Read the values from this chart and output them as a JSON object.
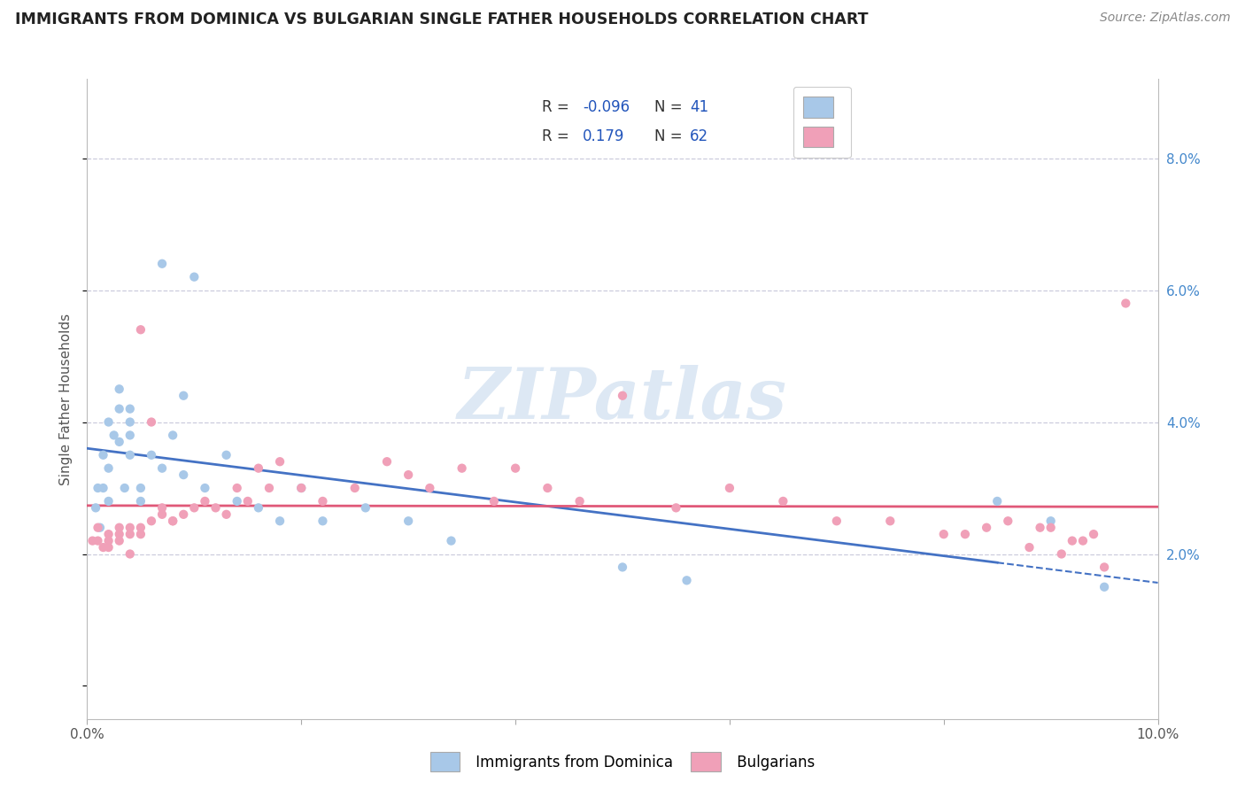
{
  "title": "IMMIGRANTS FROM DOMINICA VS BULGARIAN SINGLE FATHER HOUSEHOLDS CORRELATION CHART",
  "source_text": "Source: ZipAtlas.com",
  "ylabel": "Single Father Households",
  "xlim": [
    0.0,
    0.1
  ],
  "ylim": [
    -0.005,
    0.092
  ],
  "xtick_positions": [
    0.0,
    0.02,
    0.04,
    0.06,
    0.08,
    0.1
  ],
  "xticklabels": [
    "0.0%",
    "",
    "",
    "",
    "",
    "10.0%"
  ],
  "ytick_positions": [
    0.02,
    0.04,
    0.06,
    0.08
  ],
  "ytick_labels": [
    "2.0%",
    "4.0%",
    "6.0%",
    "8.0%"
  ],
  "blue_color": "#a8c8e8",
  "pink_color": "#f0a0b8",
  "blue_line_color": "#4472c4",
  "pink_line_color": "#e05878",
  "legend_text_color": "#2255bb",
  "grid_color": "#ccccdd",
  "watermark": "ZIPatlas",
  "watermark_color": "#dde8f4",
  "blue_label": "Immigrants from Dominica",
  "pink_label": "Bulgarians",
  "blue_R": -0.096,
  "blue_N": 41,
  "pink_R": 0.179,
  "pink_N": 62,
  "blue_scatter_x": [
    0.0008,
    0.001,
    0.0012,
    0.0015,
    0.0015,
    0.002,
    0.002,
    0.002,
    0.0025,
    0.003,
    0.003,
    0.003,
    0.0035,
    0.004,
    0.004,
    0.004,
    0.004,
    0.005,
    0.005,
    0.006,
    0.007,
    0.007,
    0.008,
    0.009,
    0.009,
    0.01,
    0.011,
    0.013,
    0.014,
    0.016,
    0.018,
    0.02,
    0.022,
    0.026,
    0.03,
    0.034,
    0.05,
    0.056,
    0.085,
    0.09,
    0.095
  ],
  "blue_scatter_y": [
    0.027,
    0.03,
    0.024,
    0.035,
    0.03,
    0.028,
    0.033,
    0.04,
    0.038,
    0.037,
    0.042,
    0.045,
    0.03,
    0.038,
    0.042,
    0.035,
    0.04,
    0.03,
    0.028,
    0.035,
    0.033,
    0.064,
    0.038,
    0.032,
    0.044,
    0.062,
    0.03,
    0.035,
    0.028,
    0.027,
    0.025,
    0.03,
    0.025,
    0.027,
    0.025,
    0.022,
    0.018,
    0.016,
    0.028,
    0.025,
    0.015
  ],
  "pink_scatter_x": [
    0.0005,
    0.001,
    0.001,
    0.0015,
    0.002,
    0.002,
    0.002,
    0.003,
    0.003,
    0.003,
    0.004,
    0.004,
    0.004,
    0.005,
    0.005,
    0.005,
    0.006,
    0.006,
    0.007,
    0.007,
    0.008,
    0.008,
    0.009,
    0.01,
    0.011,
    0.012,
    0.013,
    0.014,
    0.015,
    0.016,
    0.017,
    0.018,
    0.02,
    0.022,
    0.025,
    0.028,
    0.03,
    0.032,
    0.035,
    0.038,
    0.04,
    0.043,
    0.046,
    0.05,
    0.055,
    0.06,
    0.065,
    0.07,
    0.075,
    0.08,
    0.082,
    0.084,
    0.086,
    0.088,
    0.089,
    0.09,
    0.091,
    0.092,
    0.093,
    0.094,
    0.095,
    0.097
  ],
  "pink_scatter_y": [
    0.022,
    0.022,
    0.024,
    0.021,
    0.022,
    0.021,
    0.023,
    0.022,
    0.023,
    0.024,
    0.02,
    0.023,
    0.024,
    0.023,
    0.024,
    0.054,
    0.025,
    0.04,
    0.026,
    0.027,
    0.025,
    0.025,
    0.026,
    0.027,
    0.028,
    0.027,
    0.026,
    0.03,
    0.028,
    0.033,
    0.03,
    0.034,
    0.03,
    0.028,
    0.03,
    0.034,
    0.032,
    0.03,
    0.033,
    0.028,
    0.033,
    0.03,
    0.028,
    0.044,
    0.027,
    0.03,
    0.028,
    0.025,
    0.025,
    0.023,
    0.023,
    0.024,
    0.025,
    0.021,
    0.024,
    0.024,
    0.02,
    0.022,
    0.022,
    0.023,
    0.018,
    0.058
  ]
}
